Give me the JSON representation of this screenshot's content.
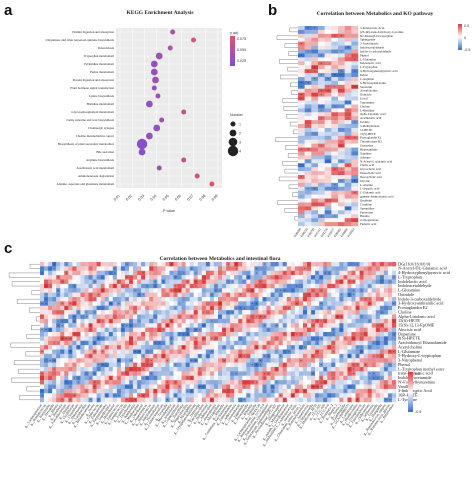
{
  "panels": {
    "a": {
      "label": "a",
      "title": "KEGG Enrichment Analysis"
    },
    "b": {
      "label": "b",
      "title": "Correlation between Metabolics and KO pathway"
    },
    "c": {
      "label": "c",
      "title": "Correlation between Metabolics and intestinal flora"
    }
  },
  "chart_data": [
    {
      "type": "scatter",
      "title": "KEGG Enrichment Analysis",
      "xlabel": "P value",
      "x_ticks": [
        "0.01",
        "0.02",
        "0.03",
        "0.04",
        "0.05",
        "0.06",
        "0.07",
        "0.08",
        "0.09"
      ],
      "xlim": [
        0.01,
        0.09
      ],
      "color_scale": {
        "label": "p.adj",
        "ticks": [
          "0.075",
          "0.050",
          "0.025"
        ],
        "low_color": "#7b4fd6",
        "high_color": "#e0566a"
      },
      "size_legend": {
        "label": "Number",
        "values": [
          1,
          2,
          3,
          4
        ]
      },
      "categories": [
        "Vitamin digestion and absorption",
        "Ubiquinone and other terpenoid-quinone biosynthesis",
        "Tuberculosis",
        "Tryptophan metabolism",
        "Pyrimidine metabolism",
        "Purine metabolism",
        "Protein digestion and absorption",
        "Plant hormone signal transduction",
        "Lysine biosynthesis",
        "Histidine metabolism",
        "Glycerophospholipid metabolism",
        "Cutin, suberine and wax biosynthesis",
        "Cholinergic synapse",
        "Choline metabolism in cancer",
        "Biosynthesis of plant secondary metabolites",
        "Bile secretion",
        "Arginine biosynthesis",
        "Arachidonic acid metabolism",
        "Aminobenzoate degradation",
        "Alanine, aspartate and glutamate metabolism"
      ],
      "x": [
        0.053,
        0.07,
        0.051,
        0.042,
        0.038,
        0.038,
        0.039,
        0.038,
        0.041,
        0.034,
        0.062,
        0.044,
        0.04,
        0.034,
        0.028,
        0.028,
        0.062,
        0.042,
        0.073,
        0.085
      ],
      "size": [
        1,
        1,
        1,
        2,
        2,
        2,
        2,
        1,
        1,
        2,
        1,
        1,
        2,
        2,
        4,
        2,
        1,
        1,
        1,
        1
      ],
      "padj": [
        0.04,
        0.07,
        0.04,
        0.03,
        0.02,
        0.02,
        0.03,
        0.02,
        0.03,
        0.02,
        0.06,
        0.03,
        0.02,
        0.02,
        0.01,
        0.01,
        0.06,
        0.03,
        0.07,
        0.08
      ]
    },
    {
      "type": "heatmap",
      "title": "Correlation between Metabolics and KO pathway",
      "columns": [
        "K00099",
        "K00230",
        "K00799",
        "K01157",
        "K01256",
        "K02077",
        "K00463",
        "K04669",
        "K10663"
      ],
      "rows": [
        "3-Indoleacetic Acid",
        "(2S,4R)-trans-4-hydroxy-L-proline",
        "N2-Malonyl-D-tryptophan",
        "Sphingosine",
        "2-Acetylindole",
        "Indoleacetaldehyde",
        "Indole-3-carboxaldehyde",
        "Phenol",
        "L-Glutamine",
        "Indolelactic acid",
        "L-Tryptophan",
        "4-Hydroxyphenylpyruvic acid",
        "Indole",
        "L-Arginine",
        "6-Hydroxymelatonin",
        "Serotonin",
        "Acetylcholine",
        "Oxindole",
        "Uracil",
        "Tryptamine",
        "Choline",
        "L-Histidine",
        "alpha-Linolenic acid",
        "Arachidonic acid",
        "Uridine",
        "3-Methylindole",
        "12-HETE",
        "15(S)-HETE",
        "Prostaglandin E2",
        "Thromboxane B2",
        "Guanosine",
        "Hypoxanthine",
        "Xanthine",
        "Adenine",
        "N-Acetyl-L-glutamic acid",
        "Cholic acid",
        "Glycocholic acid",
        "Taurocholic acid",
        "Deoxycholic acid",
        "Glycine",
        "L-Alanine",
        "L-Aspartic acid",
        "L-Glutamic acid",
        "gamma-Aminobutyric acid",
        "Ornithine",
        "Citrulline",
        "Spermidine",
        "Putrescine",
        "Betaine",
        "2-Oxoglutarate",
        "Fumaric acid"
      ],
      "color_scale": {
        "ticks": [
          "0.5",
          "0",
          "-0.5"
        ],
        "high_color": "#d9393b",
        "mid_color": "#ffffff",
        "low_color": "#3a6fc4"
      },
      "seed": 17
    },
    {
      "type": "heatmap",
      "title": "Correlation between Metabolics and intestinal flora",
      "rows": [
        "DG(16:0/16:0/0:0)",
        "N-Acetyl-DL-Glutamic acid",
        "4-Hydroxyphenylpyruvic acid",
        "L-Tryptophan",
        "Indolelactic acid",
        "Indoleacetaldehyde",
        "L-Glutamine",
        "Oxindole",
        "Indole-3-carboxaldehyde",
        "3-Hydroxyanthranilic acid",
        "Prostaglandin E2",
        "Choline",
        "Alpha-Linolenic acid",
        "15(S)-HETE",
        "15(S)-12,13-EpOME",
        "Abscisic acid",
        "Dopamine",
        "8(S)-HPETE",
        "Arachidonoyl Ethanolamide",
        "Acetylcholine",
        "L-Glutamate",
        "5-Hydroxy-L-tryptophan",
        "3-Nitrophenol",
        "Phenol",
        "L-Tryptophan methyl ester",
        "trans-Cinnamic acid",
        "Indole-3-acetamide",
        "N'-Formylkynurenine",
        "Vanillin",
        "3-Indoleacetic Acid",
        "16R-HETE",
        "L-Tyrosine"
      ],
      "columns": [
        "g__Lachnospiraceae",
        "g__Ruminococcus",
        "g__Bacteroides",
        "g__Prevotella",
        "g__Blautia",
        "g__Roseburia",
        "g__Faecalibacterium",
        "g__Alistipes",
        "g__Oscillibacter",
        "g__Clostridium",
        "g__Akkermansia",
        "g__Lactobacillus",
        "g__Bifidobacterium",
        "g__Dorea",
        "g__Coprococcus",
        "g__Eubacterium",
        "g__Parabacteroides",
        "g__Desulfovibrio",
        "g__Helicobacter",
        "g__Enterococcus",
        "g__Streptococcus",
        "g__Escherichia",
        "g__Turicibacter",
        "g__Romboutsia",
        "g__Muribaculum",
        "g__Odoribacter",
        "g__Anaerotruncus",
        "g__Butyricicoccus",
        "g__Intestinimonas",
        "g__Flavonifractor",
        "g__Lachnoclostridium",
        "g__Tyzzerella",
        "g__Marvinbryantia",
        "g__Acetatifactor",
        "g__Colidextribacter",
        "g__Harryflintia",
        "g__Negativibacillus",
        "g__Monoglobus",
        "g__Erysipelatoclostridium",
        "g__Dubosiella",
        "g__Faecalibaculum",
        "g__Ileibacterium",
        "g__Allobaculum",
        "g__Anaeroplasma",
        "g__Mucispirillum",
        "g__Rikenella",
        "g__Candidatus_Saccharimonas",
        "g__Enterorhabdus",
        "g__Adlercreutzia",
        "g__Gordonibacter",
        "g__Eggerthella",
        "g__Parasutterella",
        "g__Bilophila",
        "g__Sutterella",
        "g__Lachnospiraceae_NK4A136",
        "g__Ruminococcaceae_UCG-014",
        "g__Eubacterium_xylanophilum",
        "g__Eubacterium_coprostanoligenes",
        "g__Prevotellaceae_UCG-001",
        "g__Alloprevotella",
        "g__Muribaculaceae",
        "g__norank_f__Oscillospiraceae",
        "g__unclassified_f__Lachnospiraceae",
        "g__Incertae_Sedis",
        "g__Clostridium_sensu_stricto_1",
        "g__Ruminiclostridium",
        "g__Anaerovorax",
        "g__Christensenella",
        "g__Mollicutes_RF39",
        "g__UCG-005",
        "g__UCG-009",
        "g__UCG-010",
        "g__Roseburia_2",
        "g__Blautia_2",
        "g__Dorea_2",
        "g__Eisenbergiella",
        "g__GCA-900066575",
        "g__Lachnospira",
        "g__Shuttleworthia",
        "g__Frisingicoccus",
        "g__Fusicatenibacter",
        "g__Oribacterium",
        "g__Sellimonas",
        "g__Tuzzerella",
        "g__Hungatella",
        "g__Ruminococcus_torques",
        "g__Ruminococcus_gnavus",
        "g__Butyrivibrio"
      ],
      "color_scale": {
        "ticks": [
          "0.5",
          "0",
          "-0.5"
        ],
        "high_color": "#d9393b",
        "mid_color": "#ffffff",
        "low_color": "#3a6fc4"
      },
      "seed": 41
    }
  ]
}
